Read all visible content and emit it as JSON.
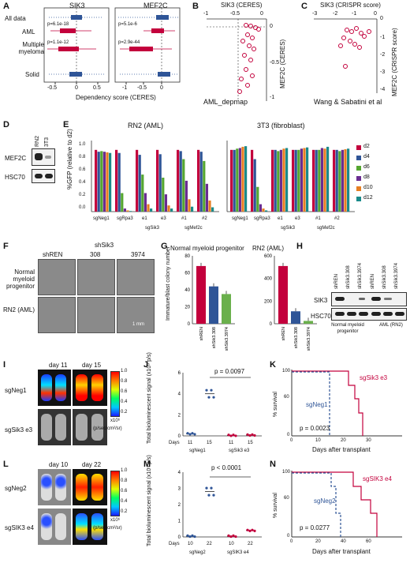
{
  "colors": {
    "red": "#c3003c",
    "blue": "#2f5597",
    "green": "#6ab04c",
    "d2": "#c3003c",
    "d4": "#2f5597",
    "d6": "#55a630",
    "d8": "#6a2c91",
    "d10": "#e67e22",
    "d12": "#1a8a8a"
  },
  "panelA": {
    "label": "A",
    "title1": "SIK3",
    "title2": "MEF2C",
    "rows": [
      "All data",
      "AML",
      "Multiple myeloma",
      "Solid"
    ],
    "p1_aml": "p=6.1e-18",
    "p1_mm": "p=1.1e-12",
    "p2_aml": "p=5.1e-6",
    "p2_mm": "p=2.9e-44",
    "xticks1": [
      "-0.5",
      "0",
      "0.5"
    ],
    "xticks2": [
      "-1",
      "-0.5",
      "0"
    ],
    "xlabel": "Dependency score (CERES)"
  },
  "panelB": {
    "label": "B",
    "xtitle": "SIK3 (CERES)",
    "xticks": [
      "-1",
      "-0.5",
      "0"
    ],
    "ytitle": "MEF2C (CERES)",
    "yticks": [
      "0",
      "-0.5",
      "-1"
    ],
    "caption": "AML_depmap"
  },
  "panelC": {
    "label": "C",
    "xtitle": "SIK3 (CRISPR score)",
    "xticks": [
      "-3",
      "-2",
      "-1",
      "0"
    ],
    "ytitle": "MEF2C (CRISPR score)",
    "yticks": [
      "0",
      "-1",
      "-2",
      "-3",
      "-4"
    ],
    "caption": "Wang & Sabatini et al"
  },
  "panelD": {
    "label": "D",
    "lanes": [
      "RN2",
      "3T3"
    ],
    "rows": [
      "MEF2C",
      "HSC70"
    ]
  },
  "panelE": {
    "label": "E",
    "title1": "RN2 (AML)",
    "title2": "3T3 (fibroblast)",
    "ylabel": "%GFP (relative to d2)",
    "yticks": [
      "0.0",
      "0.2",
      "0.4",
      "0.6",
      "0.8",
      "1.0"
    ],
    "xlabels": [
      "sgNeg1",
      "sgRpa3",
      "e1",
      "e3",
      "#1",
      "#2"
    ],
    "groups": [
      "sgSik3",
      "sgMef2c"
    ],
    "legend": [
      "d2",
      "d4",
      "d6",
      "d8",
      "d10",
      "d12"
    ]
  },
  "panelF": {
    "label": "F",
    "cols": [
      "shREN",
      "308",
      "3974"
    ],
    "group": "shSik3",
    "rows": [
      "Normal myeloid progenitor",
      "RN2 (AML)"
    ],
    "scale": "1 mm"
  },
  "panelG": {
    "label": "G",
    "title1": "Normal myeloid progenitor",
    "title2": "RN2 (AML)",
    "ylabel": "Immature/blast colony number",
    "yticks1": [
      "0",
      "20",
      "40",
      "60",
      "80"
    ],
    "yticks2": [
      "0",
      "200",
      "400",
      "600"
    ],
    "xlabels": [
      "shREN",
      "shSik3.308",
      "shSik3.3974"
    ]
  },
  "panelH": {
    "label": "H",
    "lanes": [
      "shREN",
      "shSik3.308",
      "shSik3.3974",
      "shREN",
      "shSik3.308",
      "shSik3.3974"
    ],
    "rows": [
      "SIK3",
      "HSC70"
    ],
    "groups": [
      "Normal myeloid progenitor",
      "AML (RN2)"
    ]
  },
  "panelI": {
    "label": "I",
    "days": [
      "day 11",
      "day 15"
    ],
    "rows": [
      "sgNeg1",
      "sgSik3 e3"
    ],
    "cbticks": [
      "1.0",
      "0.8",
      "0.6",
      "0.4",
      "0.2"
    ],
    "cbunit": "x10⁶",
    "cbunit2": "(p/sec/cm²/sr)"
  },
  "panelJ": {
    "label": "J",
    "ylabel": "Total bioluminescent signal (x10⁹ p/s)",
    "yticks": [
      "0",
      "2",
      "4",
      "6"
    ],
    "pval": "p = 0.0097",
    "dayslabel": "Days",
    "days": [
      "11",
      "15",
      "11",
      "15"
    ],
    "groups": [
      "sgNeg1",
      "sgSik3 e3"
    ]
  },
  "panelK": {
    "label": "K",
    "ylabel": "% survival",
    "yticks": [
      "0",
      "20",
      "40",
      "60",
      "80",
      "100"
    ],
    "xlabel": "Days after transplant",
    "xticks": [
      "0",
      "10",
      "20",
      "30"
    ],
    "pval": "p = 0.0023",
    "s1": "sgSik3 e3",
    "s2": "sgNeg1"
  },
  "panelL": {
    "label": "L",
    "days": [
      "day 10",
      "day 22"
    ],
    "rows": [
      "sgNeg2",
      "sgSIK3 e4"
    ],
    "cbticks": [
      "1.0",
      "0.8",
      "0.6",
      "0.4",
      "0.2"
    ],
    "cbunit": "x10⁶",
    "cbunit2": "(p/sec/cm²/sr)"
  },
  "panelM": {
    "label": "M",
    "ylabel": "Total bioluminescent signal (x10⁹ p/s)",
    "yticks": [
      "0",
      "1",
      "2",
      "3",
      "4"
    ],
    "pval": "p < 0.0001",
    "dayslabel": "Days",
    "days": [
      "10",
      "22",
      "10",
      "22"
    ],
    "groups": [
      "sgNeg2",
      "sgSIK3 e4"
    ]
  },
  "panelN": {
    "label": "N",
    "ylabel": "% survival",
    "yticks": [
      "0",
      "20",
      "40",
      "60",
      "80",
      "100"
    ],
    "xlabel": "Days after transplant",
    "xticks": [
      "0",
      "20",
      "40",
      "60"
    ],
    "pval": "p = 0.0277",
    "s1": "sgSIK3 e4",
    "s2": "sgNeg2"
  },
  "chart_data": [
    {
      "type": "bar",
      "title": "RN2 (AML)",
      "categories": [
        "sgNeg1",
        "sgRpa3",
        "sgSik3 e1",
        "sgSik3 e3",
        "sgMef2c #1",
        "sgMef2c #2"
      ],
      "series": [
        {
          "name": "d2",
          "values": [
            1,
            1,
            1,
            1,
            1,
            1
          ]
        },
        {
          "name": "d4",
          "values": [
            0.97,
            0.95,
            0.92,
            0.93,
            0.98,
            0.97
          ]
        },
        {
          "name": "d6",
          "values": [
            0.98,
            0.3,
            0.6,
            0.55,
            0.85,
            0.82
          ]
        },
        {
          "name": "d8",
          "values": [
            0.97,
            0.05,
            0.3,
            0.28,
            0.5,
            0.45
          ]
        },
        {
          "name": "d10",
          "values": [
            0.96,
            0.02,
            0.12,
            0.1,
            0.2,
            0.18
          ]
        },
        {
          "name": "d12",
          "values": [
            0.95,
            0.01,
            0.05,
            0.05,
            0.08,
            0.07
          ]
        }
      ],
      "ylim": [
        0,
        1.1
      ]
    },
    {
      "type": "bar",
      "title": "3T3 (fibroblast)",
      "categories": [
        "sgNeg1",
        "sgRpa3",
        "sgSik3 e1",
        "sgSik3 e3",
        "sgMef2c #1",
        "sgMef2c #2"
      ],
      "series": [
        {
          "name": "d2",
          "values": [
            1,
            1,
            1,
            1,
            1,
            1
          ]
        },
        {
          "name": "d4",
          "values": [
            1,
            0.85,
            1,
            1,
            1,
            1
          ]
        },
        {
          "name": "d6",
          "values": [
            1.02,
            0.4,
            0.98,
            1,
            1,
            0.98
          ]
        },
        {
          "name": "d8",
          "values": [
            1.03,
            0.12,
            1,
            1.02,
            1.03,
            1
          ]
        },
        {
          "name": "d10",
          "values": [
            1.05,
            0.05,
            1.02,
            1.03,
            1.02,
            1.01
          ]
        },
        {
          "name": "d12",
          "values": [
            1.06,
            0.02,
            1.03,
            1.04,
            1.05,
            1.02
          ]
        }
      ],
      "ylim": [
        0,
        1.1
      ]
    },
    {
      "type": "bar",
      "title": "Normal myeloid progenitor",
      "categories": [
        "shREN",
        "shSik3.308",
        "shSik3.3974"
      ],
      "values": [
        68,
        44,
        35
      ],
      "ylim": [
        0,
        80
      ]
    },
    {
      "type": "bar",
      "title": "RN2 (AML)",
      "categories": [
        "shREN",
        "shSik3.308",
        "shSik3.3974"
      ],
      "values": [
        510,
        110,
        25
      ],
      "ylim": [
        0,
        600
      ]
    },
    {
      "type": "scatter",
      "title": "panel J",
      "series": [
        {
          "name": "sgNeg1",
          "x": [
            11,
            15
          ],
          "values": [
            0.2,
            4
          ]
        },
        {
          "name": "sgSik3 e3",
          "x": [
            11,
            15
          ],
          "values": [
            0.05,
            0.08
          ]
        }
      ],
      "ylim": [
        0,
        6
      ]
    },
    {
      "type": "scatter",
      "title": "panel M",
      "series": [
        {
          "name": "sgNeg2",
          "x": [
            10,
            22
          ],
          "values": [
            0.05,
            2.8
          ]
        },
        {
          "name": "sgSIK3 e4",
          "x": [
            10,
            22
          ],
          "values": [
            0.05,
            0.4
          ]
        }
      ],
      "ylim": [
        0,
        4
      ]
    }
  ]
}
